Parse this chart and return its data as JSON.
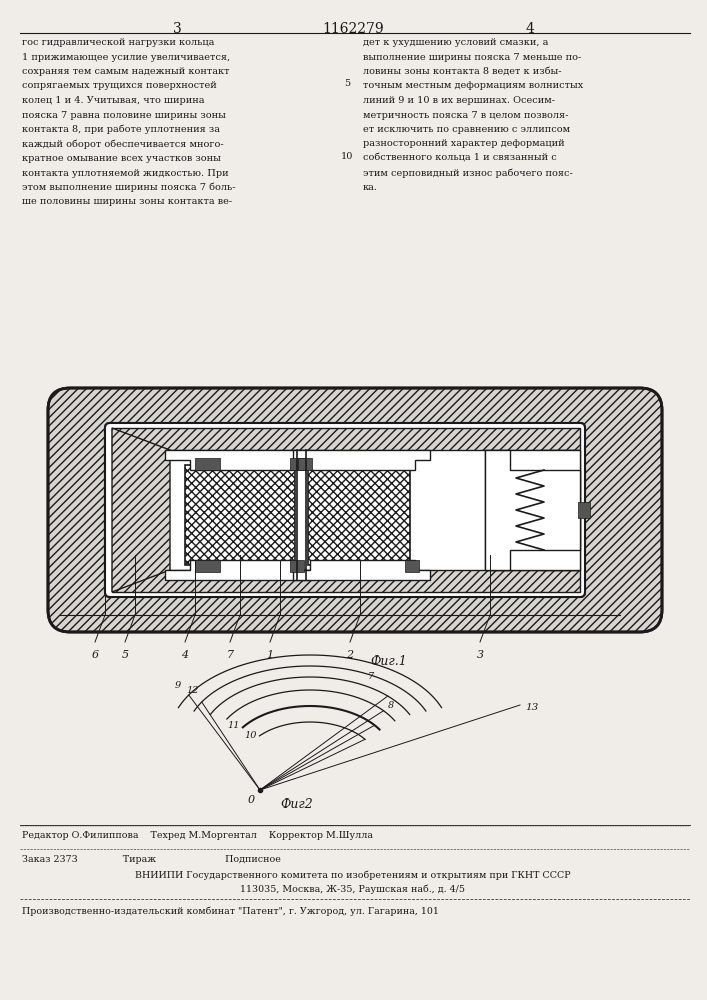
{
  "page_number_left": "3",
  "patent_number": "1162279",
  "page_number_right": "4",
  "left_text": "гос гидравлической нагрузки кольца\n1 прижимающее усилие увеличивается,\nсохраняя тем самым надежный контакт\nсопрягаемых трущихся поверхностей\nколец 1 и 4. Учитывая, что ширина\nпояска 7 равна половине ширины зоны\nконтакта 8, при работе уплотнения за\nкаждый оборот обеспечивается много-\nкратное омывание всех участков зоны\nконтакта уплотняемой жидкостью. При\nэтом выполнение ширины пояска 7 боль-\nше половины ширины зоны контакта ве-",
  "right_text": "дет к ухудшению условий смазки, а\nвыполнение ширины пояска 7 меньше по-\nловины зоны контакта 8 ведет к избы-\nточным местным деформациям волнистых\nлиний 9 и 10 в их вершинах. Осесим-\nметричность пояска 7 в целом позволя-\nет исключить по сравнению с эллипсом\nразносторонний характер деформаций\nсобственного кольца 1 и связанный с\nэтим серповидный износ рабочего пояс-\nка.",
  "fig1_label": "Фиг.1",
  "fig2_label": "Фиг2",
  "part_labels_fig1": [
    "6",
    "5",
    "4",
    "7",
    "1",
    "2",
    "3"
  ],
  "editor_line": "Редактор О.Филиппова    Техред М.Моргентал    Корректор М.Шулла",
  "order_line": "Заказ 2373               Тираж                       Подписное",
  "vnipi_line": "ВНИИПИ Государственного комитета по изобретениям и открытиям при ГКНТ СССР",
  "address_line": "113035, Москва, Ж-35, Раушская наб., д. 4/5",
  "publisher_line": "Производственно-издательский комбинат \"Патент\", г. Ужгород, ул. Гагарина, 101",
  "bg_color": "#f0ede8",
  "text_color": "#1a1a1a",
  "line_color": "#1a1a1a"
}
